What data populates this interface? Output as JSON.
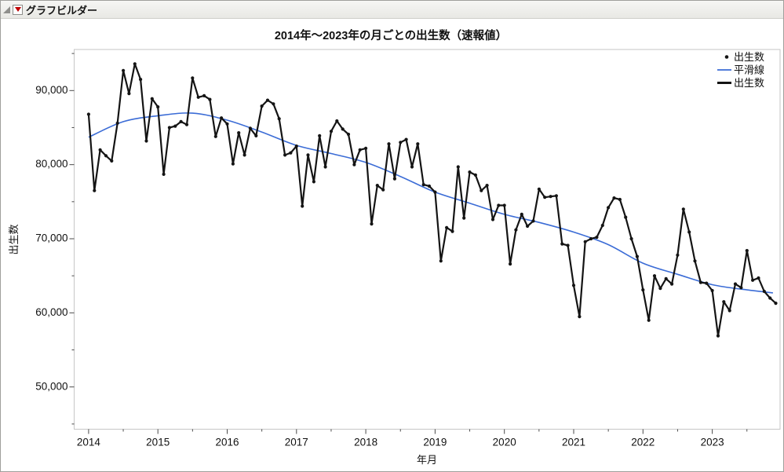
{
  "window": {
    "title": "グラフビルダー"
  },
  "chart": {
    "title": "2014年～2023年の月ごとの出生数（速報値）",
    "x_axis": {
      "title": "年月",
      "ticks": [
        "2014",
        "2015",
        "2016",
        "2017",
        "2018",
        "2019",
        "2020",
        "2021",
        "2022",
        "2023"
      ]
    },
    "y_axis": {
      "title": "出生数",
      "ticks": [
        "90,000",
        "80,000",
        "70,000",
        "60,000",
        "50,000"
      ],
      "tick_values": [
        90000,
        80000,
        70000,
        60000,
        50000
      ],
      "minor_tick_values": [
        95000,
        85000,
        75000,
        65000,
        55000,
        45000
      ]
    },
    "legend": [
      {
        "label": "出生数",
        "marker": "point",
        "color": "#141414"
      },
      {
        "label": "平滑線",
        "marker": "line",
        "color": "#3b6cd6"
      },
      {
        "label": "出生数",
        "marker": "line-thick",
        "color": "#141414"
      }
    ]
  },
  "chart_data": {
    "type": "line",
    "title": "2014年～2023年の月ごとの出生数（速報値）",
    "xlabel": "年月",
    "ylabel": "出生数",
    "x_start": "2014-01",
    "x_end": "2023-12",
    "x_tick_years": [
      2014,
      2015,
      2016,
      2017,
      2018,
      2019,
      2020,
      2021,
      2022,
      2023
    ],
    "ylim": [
      45500,
      95800
    ],
    "grid": false,
    "legend_position": "top-right-inside",
    "series": [
      {
        "name": "出生数",
        "style": "line-with-points",
        "color": "#141414",
        "values": [
          86800,
          76500,
          82000,
          81200,
          80500,
          85600,
          92700,
          89600,
          93600,
          91500,
          83200,
          88900,
          87800,
          78700,
          85000,
          85200,
          85800,
          85400,
          91700,
          89100,
          89300,
          88800,
          83800,
          86300,
          85500,
          80100,
          84300,
          81300,
          84900,
          83900,
          87900,
          88700,
          88200,
          86200,
          81300,
          81600,
          82500,
          74400,
          81300,
          77700,
          83900,
          79700,
          84500,
          85900,
          84800,
          84100,
          80000,
          82000,
          82200,
          72000,
          77200,
          76600,
          82800,
          78100,
          83000,
          83400,
          79700,
          82800,
          77300,
          77100,
          76300,
          67000,
          71500,
          71000,
          79700,
          72800,
          79000,
          78600,
          76500,
          77200,
          72600,
          74500,
          74500,
          66600,
          71200,
          73300,
          71700,
          72400,
          76700,
          75600,
          75700,
          75800,
          69300,
          69100,
          63700,
          59500,
          69600,
          70000,
          70200,
          71800,
          74200,
          75500,
          75300,
          72900,
          70000,
          67600,
          63100,
          59000,
          65000,
          63300,
          64600,
          63900,
          67800,
          74000,
          70900,
          67000,
          64100,
          64000,
          63000,
          56900,
          61500,
          60300,
          63900,
          63400,
          68400,
          64400,
          64700,
          62900,
          62000,
          61300
        ]
      },
      {
        "name": "平滑線",
        "style": "smooth",
        "color": "#3b6cd6",
        "anchor_month_index": [
          0,
          6,
          12,
          18,
          24,
          30,
          36,
          42,
          48,
          54,
          60,
          66,
          72,
          78,
          84,
          90,
          96,
          102,
          108,
          114,
          118.5
        ],
        "anchor_values": [
          83700,
          85800,
          86600,
          86950,
          86000,
          84400,
          82600,
          81500,
          80300,
          78400,
          76300,
          74800,
          73300,
          72200,
          70900,
          69200,
          66700,
          65200,
          63800,
          63100,
          62700
        ]
      }
    ]
  }
}
